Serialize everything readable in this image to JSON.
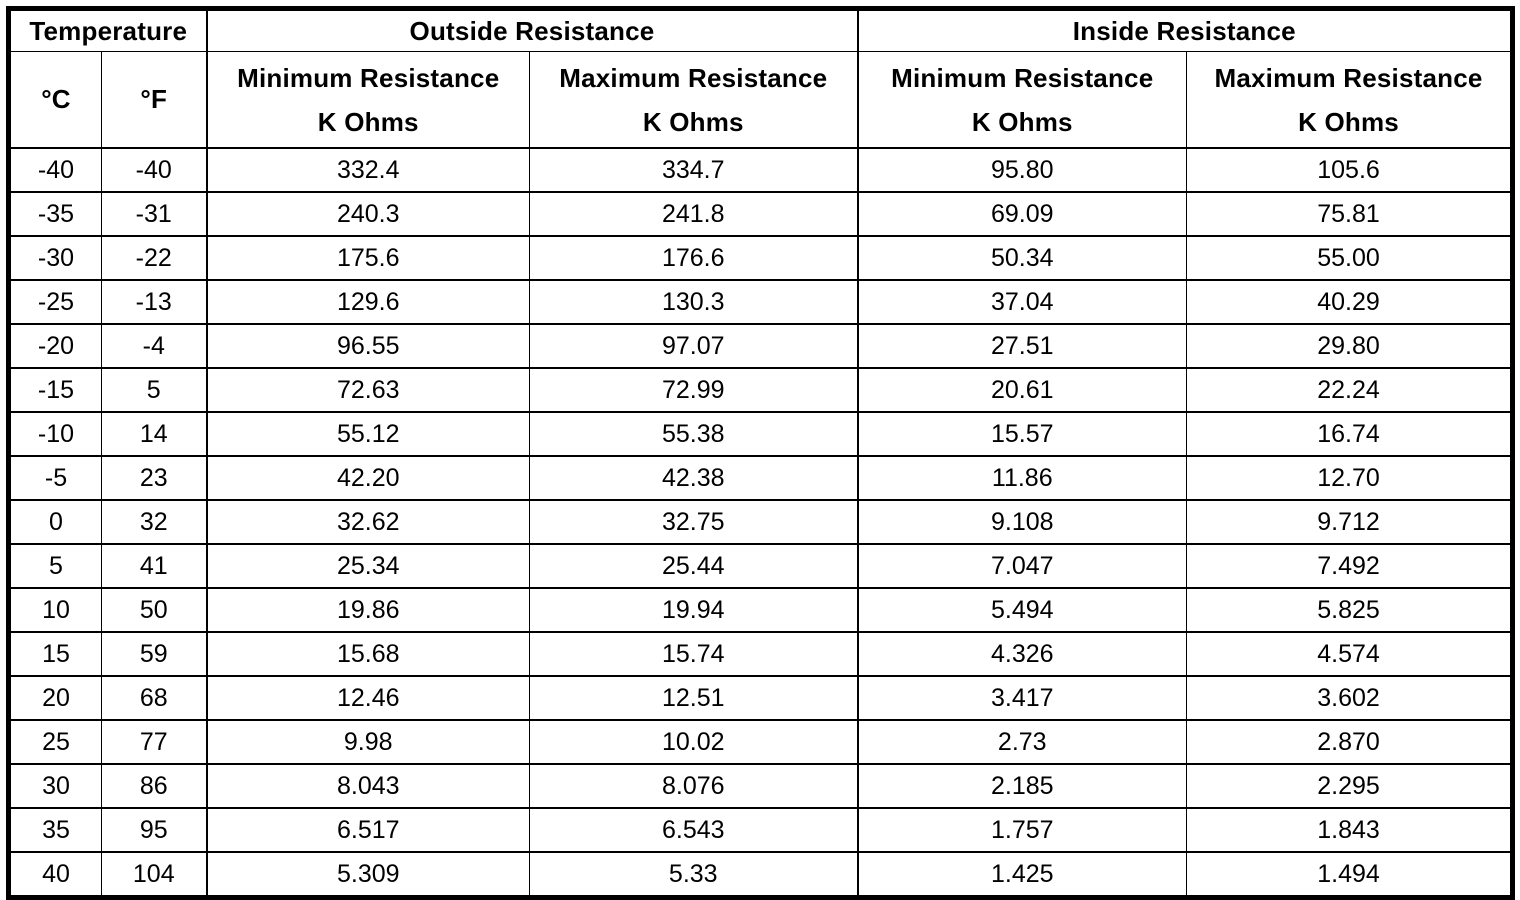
{
  "table": {
    "title_row": {
      "temperature": "Temperature",
      "outside": "Outside Resistance",
      "inside": "Inside Resistance"
    },
    "subheader": {
      "celsius": "°C",
      "fahrenheit": "°F",
      "min_label": "Minimum Resistance",
      "max_label": "Maximum Resistance",
      "unit": "K Ohms"
    },
    "columns": [
      "°C",
      "°F",
      "Outside Minimum Resistance (K Ohms)",
      "Outside Maximum Resistance (K Ohms)",
      "Inside Minimum Resistance (K Ohms)",
      "Inside Maximum Resistance (K Ohms)"
    ],
    "rows": [
      [
        "-40",
        "-40",
        "332.4",
        "334.7",
        "95.80",
        "105.6"
      ],
      [
        "-35",
        "-31",
        "240.3",
        "241.8",
        "69.09",
        "75.81"
      ],
      [
        "-30",
        "-22",
        "175.6",
        "176.6",
        "50.34",
        "55.00"
      ],
      [
        "-25",
        "-13",
        "129.6",
        "130.3",
        "37.04",
        "40.29"
      ],
      [
        "-20",
        "-4",
        "96.55",
        "97.07",
        "27.51",
        "29.80"
      ],
      [
        "-15",
        "5",
        "72.63",
        "72.99",
        "20.61",
        "22.24"
      ],
      [
        "-10",
        "14",
        "55.12",
        "55.38",
        "15.57",
        "16.74"
      ],
      [
        "-5",
        "23",
        "42.20",
        "42.38",
        "11.86",
        "12.70"
      ],
      [
        "0",
        "32",
        "32.62",
        "32.75",
        "9.108",
        "9.712"
      ],
      [
        "5",
        "41",
        "25.34",
        "25.44",
        "7.047",
        "7.492"
      ],
      [
        "10",
        "50",
        "19.86",
        "19.94",
        "5.494",
        "5.825"
      ],
      [
        "15",
        "59",
        "15.68",
        "15.74",
        "4.326",
        "4.574"
      ],
      [
        "20",
        "68",
        "12.46",
        "12.51",
        "3.417",
        "3.602"
      ],
      [
        "25",
        "77",
        "9.98",
        "10.02",
        "2.73",
        "2.870"
      ],
      [
        "30",
        "86",
        "8.043",
        "8.076",
        "2.185",
        "2.295"
      ],
      [
        "35",
        "95",
        "6.517",
        "6.543",
        "1.757",
        "1.843"
      ],
      [
        "40",
        "104",
        "5.309",
        "5.33",
        "1.425",
        "1.494"
      ]
    ],
    "colors": {
      "border": "#000000",
      "background": "#ffffff",
      "text": "#000000"
    }
  }
}
